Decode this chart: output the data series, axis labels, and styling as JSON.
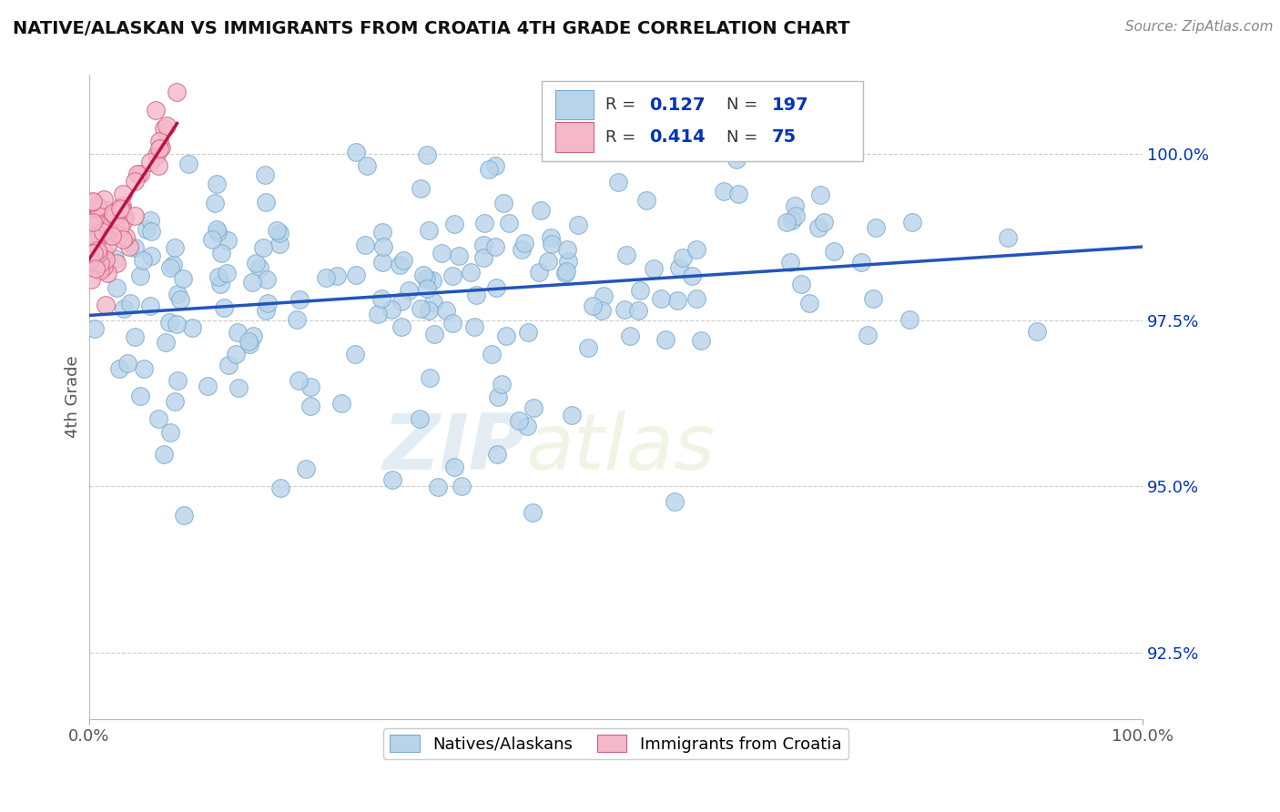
{
  "title": "NATIVE/ALASKAN VS IMMIGRANTS FROM CROATIA 4TH GRADE CORRELATION CHART",
  "source": "Source: ZipAtlas.com",
  "ylabel": "4th Grade",
  "watermark_zip": "ZIP",
  "watermark_atlas": "atlas",
  "xlim": [
    0.0,
    100.0
  ],
  "ylim": [
    91.5,
    101.2
  ],
  "yticks": [
    92.5,
    95.0,
    97.5,
    100.0
  ],
  "legend_blue_label": "Natives/Alaskans",
  "legend_pink_label": "Immigrants from Croatia",
  "R_blue": 0.127,
  "N_blue": 197,
  "R_pink": 0.414,
  "N_pink": 75,
  "blue_color": "#b8d4ea",
  "blue_edge": "#7aaad0",
  "pink_color": "#f5b8c8",
  "pink_edge": "#d06080",
  "blue_line_color": "#2255bb",
  "pink_line_color": "#bb1144",
  "background_color": "#ffffff",
  "grid_color": "#cccccc",
  "title_color": "#111111",
  "annotation_color": "#0033bb",
  "seed": 12
}
